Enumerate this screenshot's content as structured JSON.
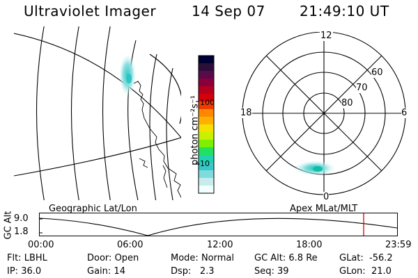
{
  "header": {
    "instrument": "Ultraviolet Imager",
    "date": "14 Sep 07",
    "time": "21:49:10 UT"
  },
  "colorbar": {
    "unit_label": "photon cm⁻²s⁻¹",
    "ticks": [
      "100",
      "10"
    ],
    "colors": [
      "#000033",
      "#2b0f3a",
      "#5a0a4a",
      "#8a003a",
      "#b3001f",
      "#d6000c",
      "#ef3b00",
      "#ff8800",
      "#ffb000",
      "#f5e000",
      "#c8f000",
      "#7cf000",
      "#22e060",
      "#20d2b0",
      "#39c8c8",
      "#7fdcdc",
      "#c8ecec",
      "#f0ffff"
    ]
  },
  "polar": {
    "mlt_labels": [
      "12",
      "18",
      "6",
      "0"
    ],
    "lat_labels": [
      "60",
      "70",
      "80"
    ]
  },
  "panels": {
    "left_caption": "Geographic Lat/Lon",
    "right_caption": "Apex MLat/MLT"
  },
  "timeline": {
    "ylabel": "GC Alt",
    "ytick_top": "9.0",
    "ytick_bottom": "1.8",
    "xticks": [
      "00:00",
      "06:00",
      "12:00",
      "18:00",
      "23:59"
    ],
    "marker_color": "#d40000"
  },
  "info": {
    "flt_label": "Flt:",
    "flt_value": "LBHL",
    "ip_label": "IP:",
    "ip_value": "36.0",
    "door_label": "Door:",
    "door_value": "Open",
    "gain_label": "Gain:",
    "gain_value": "14",
    "mode_label": "Mode:",
    "mode_value": "Normal",
    "dsp_label": "Dsp:",
    "dsp_value": "2.3",
    "gcalt_label": "GC Alt:",
    "gcalt_value": "6.8 Re",
    "seq_label": "Seq:",
    "seq_value": "39",
    "glat_label": "GLat:",
    "glat_value": "-56.2",
    "glon_label": "GLon:",
    "glon_value": "21.0"
  }
}
